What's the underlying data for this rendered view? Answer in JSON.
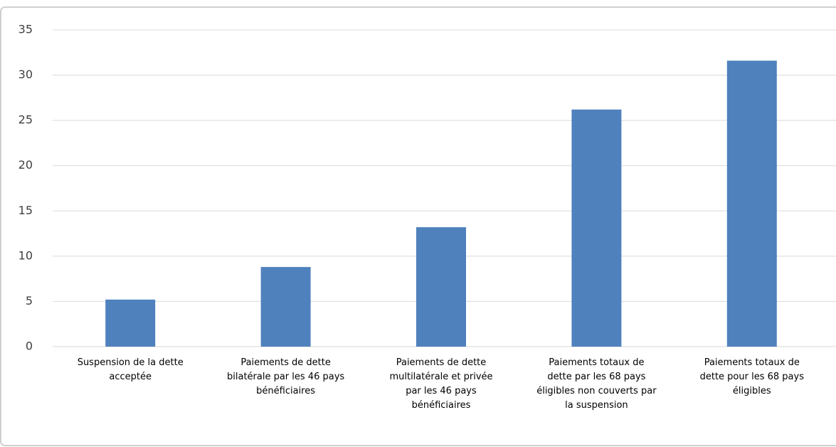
{
  "chart_data": {
    "type": "bar",
    "categories": [
      "Suspension de la dette acceptée",
      "Paiements de dette bilatérale par les 46 pays bénéficiaires",
      "Paiements de dette multilatérale et privée par les 46 pays bénéficiaires",
      "Paiements totaux de dette par les 68 pays éligibles non couverts par la suspension",
      "Paiements totaux de dette pour les 68 pays éligibles"
    ],
    "values": [
      5.2,
      8.8,
      13.2,
      26.2,
      31.6
    ],
    "color": "#4f81bd",
    "ylim": [
      0,
      35
    ],
    "yticks": [
      0,
      5,
      10,
      15,
      20,
      25,
      30,
      35
    ],
    "grid": true
  }
}
